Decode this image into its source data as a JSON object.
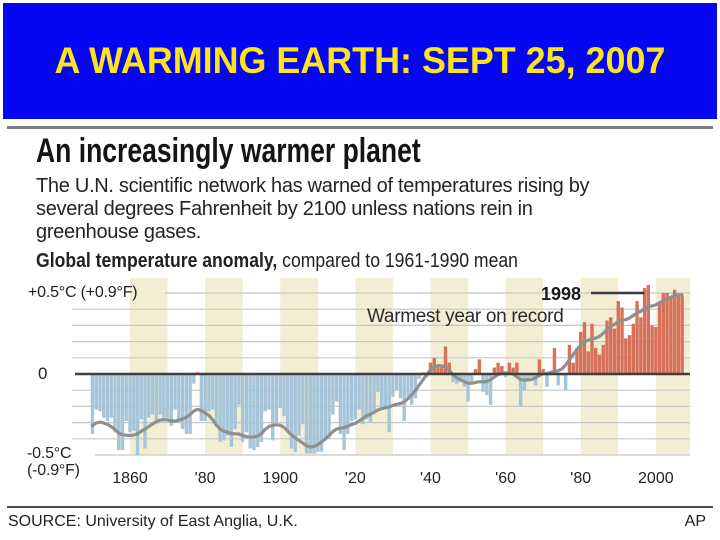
{
  "slide": {
    "title": "A WARMING EARTH: SEPT 25, 2007",
    "colors": {
      "banner_background": "#0606f0",
      "banner_text": "#fbe41e"
    }
  },
  "graphic": {
    "headline": "An increasingly warmer planet",
    "body_lines": [
      "The U.N. scientific network has warned of temperatures rising by",
      "several degrees Fahrenheit by 2100 unless nations rein in",
      "greenhouse gases."
    ],
    "chart_label_bold": "Global temperature anomaly,",
    "chart_label_rest": " compared to 1961-1990 mean",
    "y_axis": {
      "top": "+0.5°C (+0.9°F)",
      "zero": "0",
      "bottom_line1": "-0.5°C",
      "bottom_line2": "(-0.9°F)"
    },
    "annotation_year": "1998",
    "annotation_text": "Warmest year on record",
    "source": "SOURCE: University of East Anglia, U.K.",
    "credit": "AP"
  },
  "chart_data": {
    "type": "bar",
    "title": "Global temperature anomaly, compared to 1961-1990 mean",
    "ylabel": "Temperature anomaly (°C vs 1961-1990 mean)",
    "ylim": [
      -0.5,
      0.55
    ],
    "gridline_step": 0.1,
    "start_year": 1850,
    "end_year": 2007,
    "x_ticks": [
      {
        "year": 1860,
        "label": "1860"
      },
      {
        "year": 1880,
        "label": "'80"
      },
      {
        "year": 1900,
        "label": "1900"
      },
      {
        "year": 1920,
        "label": "'20"
      },
      {
        "year": 1940,
        "label": "'40"
      },
      {
        "year": 1960,
        "label": "'60"
      },
      {
        "year": 1980,
        "label": "'80"
      },
      {
        "year": 2000,
        "label": "2000"
      }
    ],
    "values": [
      -0.37,
      -0.22,
      -0.23,
      -0.27,
      -0.29,
      -0.27,
      -0.36,
      -0.47,
      -0.47,
      -0.29,
      -0.36,
      -0.35,
      -0.5,
      -0.28,
      -0.46,
      -0.27,
      -0.25,
      -0.3,
      -0.25,
      -0.29,
      -0.27,
      -0.32,
      -0.22,
      -0.3,
      -0.34,
      -0.37,
      -0.37,
      -0.06,
      0.01,
      -0.29,
      -0.29,
      -0.23,
      -0.22,
      -0.3,
      -0.42,
      -0.41,
      -0.38,
      -0.45,
      -0.34,
      -0.19,
      -0.42,
      -0.36,
      -0.46,
      -0.47,
      -0.45,
      -0.42,
      -0.23,
      -0.22,
      -0.41,
      -0.3,
      -0.21,
      -0.26,
      -0.36,
      -0.46,
      -0.48,
      -0.38,
      -0.31,
      -0.49,
      -0.49,
      -0.49,
      -0.48,
      -0.48,
      -0.41,
      -0.4,
      -0.25,
      -0.17,
      -0.37,
      -0.47,
      -0.37,
      -0.29,
      -0.28,
      -0.22,
      -0.31,
      -0.28,
      -0.3,
      -0.23,
      -0.11,
      -0.21,
      -0.2,
      -0.36,
      -0.14,
      -0.1,
      -0.15,
      -0.29,
      -0.14,
      -0.19,
      -0.15,
      -0.03,
      0.0,
      -0.02,
      0.07,
      0.1,
      0.04,
      0.04,
      0.17,
      0.07,
      -0.05,
      -0.06,
      -0.05,
      -0.08,
      -0.17,
      -0.05,
      0.03,
      0.09,
      -0.11,
      -0.13,
      -0.19,
      0.04,
      0.07,
      0.05,
      -0.02,
      0.07,
      0.04,
      0.07,
      -0.2,
      -0.1,
      -0.04,
      -0.02,
      -0.07,
      0.09,
      0.03,
      -0.08,
      0.01,
      0.16,
      -0.07,
      -0.01,
      -0.1,
      0.18,
      0.07,
      0.16,
      0.26,
      0.32,
      0.14,
      0.31,
      0.16,
      0.12,
      0.18,
      0.33,
      0.35,
      0.28,
      0.45,
      0.41,
      0.22,
      0.24,
      0.31,
      0.45,
      0.35,
      0.53,
      0.55,
      0.3,
      0.29,
      0.44,
      0.5,
      0.5,
      0.48,
      0.52,
      0.49,
      0.48
    ],
    "highlight": {
      "year": 1998,
      "label": "Warmest year on record"
    },
    "colors": {
      "positive_bar": "#d8715a",
      "negative_bar": "#a7c5d9",
      "trend_line": "#8f8f8f",
      "zero_line": "#3f3f3f",
      "gridline": "#c7c7c7",
      "decade_band": "#f1eed4",
      "leader_line": "#3a3a3a"
    },
    "legend_position": "none",
    "notes": "Annual bars; gray line is smoothed trend; shaded vertical bands mark alternate decades."
  }
}
